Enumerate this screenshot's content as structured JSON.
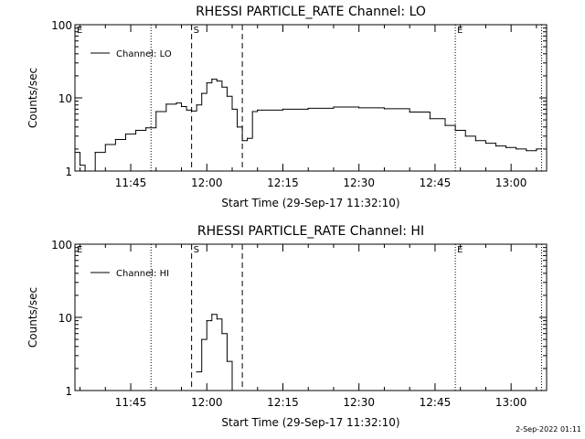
{
  "footer_date": "2-Sep-2022 01:11",
  "chart_data": [
    {
      "type": "line",
      "title": "RHESSI PARTICLE_RATE Channel: LO",
      "xlabel": "Start Time (29-Sep-17 11:32:10)",
      "ylabel": "Counts/sec",
      "y_scale": "log",
      "ylim": [
        1,
        100
      ],
      "xlim": [
        "11:34",
        "13:07"
      ],
      "xticks": [
        "11:45",
        "12:00",
        "12:15",
        "12:30",
        "12:45",
        "13:00"
      ],
      "yticks": [
        "1",
        "10",
        "100"
      ],
      "legend": "top-left",
      "series": [
        {
          "name": "Channel: LO",
          "x": [
            "11:34",
            "11:35",
            "11:36",
            "11:38",
            "11:40",
            "11:42",
            "11:44",
            "11:46",
            "11:48",
            "11:50",
            "11:52",
            "11:54",
            "11:55",
            "11:56",
            "11:57",
            "11:58",
            "11:59",
            "12:00",
            "12:01",
            "12:02",
            "12:03",
            "12:04",
            "12:05",
            "12:06",
            "12:07",
            "12:08",
            "12:09",
            "12:10",
            "12:15",
            "12:20",
            "12:25",
            "12:30",
            "12:35",
            "12:40",
            "12:44",
            "12:47",
            "12:49",
            "12:51",
            "12:53",
            "12:55",
            "12:57",
            "12:59",
            "13:01",
            "13:03",
            "13:05",
            "13:06"
          ],
          "y": [
            1.8,
            1.2,
            1.0,
            1.8,
            2.3,
            2.7,
            3.2,
            3.6,
            3.9,
            6.5,
            8.2,
            8.5,
            7.6,
            6.8,
            6.6,
            8.0,
            11.5,
            16.0,
            18.0,
            17.0,
            14.0,
            10.5,
            7.0,
            4.0,
            2.6,
            2.8,
            6.5,
            6.8,
            7.0,
            7.2,
            7.5,
            7.3,
            7.1,
            6.4,
            5.2,
            4.2,
            3.6,
            3.0,
            2.6,
            2.4,
            2.2,
            2.1,
            2.0,
            1.9,
            2.0,
            2.0
          ]
        }
      ],
      "annotations": [
        {
          "label": "E",
          "time": "11:34",
          "style": "dotted"
        },
        {
          "label": "",
          "time": "11:49",
          "style": "dotted"
        },
        {
          "label": "S",
          "time": "11:57",
          "style": "dashed"
        },
        {
          "label": "",
          "time": "12:07",
          "style": "dashed"
        },
        {
          "label": "E",
          "time": "12:49",
          "style": "dotted"
        },
        {
          "label": "",
          "time": "13:06",
          "style": "dotted"
        }
      ]
    },
    {
      "type": "line",
      "title": "RHESSI PARTICLE_RATE Channel: HI",
      "xlabel": "Start Time (29-Sep-17 11:32:10)",
      "ylabel": "Counts/sec",
      "y_scale": "log",
      "ylim": [
        1,
        100
      ],
      "xlim": [
        "11:34",
        "13:07"
      ],
      "xticks": [
        "11:45",
        "12:00",
        "12:15",
        "12:30",
        "12:45",
        "13:00"
      ],
      "yticks": [
        "1",
        "10",
        "100"
      ],
      "legend": "top-left",
      "series": [
        {
          "name": "Channel: HI",
          "x": [
            "11:58",
            "11:59",
            "12:00",
            "12:01",
            "12:02",
            "12:03",
            "12:04",
            "12:05"
          ],
          "y": [
            1.8,
            5.0,
            9.0,
            11.0,
            9.5,
            6.0,
            2.5,
            1.0
          ]
        }
      ],
      "annotations": [
        {
          "label": "E",
          "time": "11:34",
          "style": "dotted"
        },
        {
          "label": "",
          "time": "11:49",
          "style": "dotted"
        },
        {
          "label": "S",
          "time": "11:57",
          "style": "dashed"
        },
        {
          "label": "",
          "time": "12:07",
          "style": "dashed"
        },
        {
          "label": "E",
          "time": "12:49",
          "style": "dotted"
        },
        {
          "label": "",
          "time": "13:06",
          "style": "dotted"
        }
      ]
    }
  ]
}
